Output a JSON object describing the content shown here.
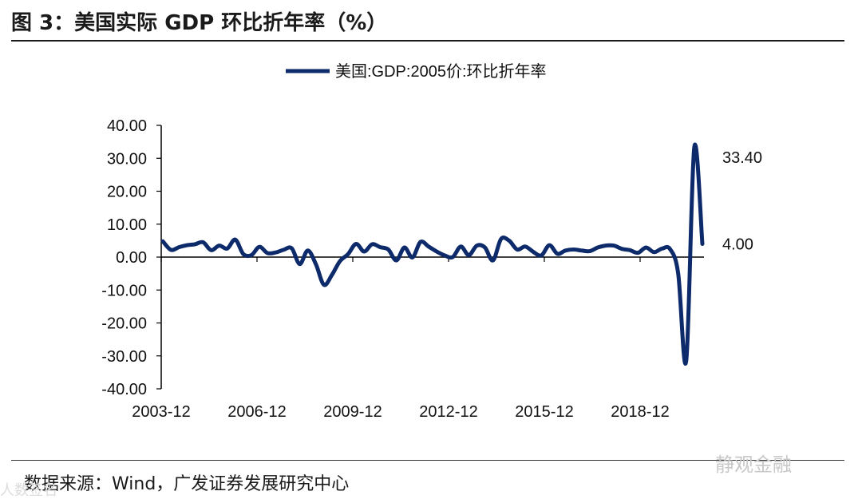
{
  "figure": {
    "title": "图 3：美国实际 GDP 环比折年率（%）",
    "source_label": "数据来源：",
    "source_text": "Wind，广发证券发展研究中心",
    "watermark": "静观金融",
    "watermark_small": "人数签名"
  },
  "colors": {
    "series": "#0d2a6b",
    "axis": "#000000",
    "text": "#111111"
  },
  "chart_data": {
    "type": "line",
    "title": "",
    "xlabel": "",
    "ylabel": "",
    "ylim": [
      -40,
      40
    ],
    "yticks": [
      "40.00",
      "30.00",
      "20.00",
      "10.00",
      "0.00",
      "-10.00",
      "-20.00",
      "-30.00",
      "-40.00"
    ],
    "xtick_labels": [
      "2003-12",
      "2006-12",
      "2009-12",
      "2012-12",
      "2015-12",
      "2018-12"
    ],
    "xtick_positions": [
      0,
      12,
      24,
      36,
      48,
      60
    ],
    "legend_placement": "top-center",
    "series": [
      {
        "name": "美国:GDP:2005价:环比折年率",
        "values": [
          4.8,
          2.2,
          3.0,
          3.6,
          3.9,
          4.5,
          2.1,
          3.5,
          2.6,
          5.3,
          0.9,
          0.6,
          3.1,
          1.2,
          1.4,
          2.2,
          2.7,
          -2.1,
          2.0,
          -2.1,
          -8.4,
          -5.4,
          -1.2,
          0.9,
          4.0,
          1.7,
          3.9,
          3.0,
          2.3,
          -1.0,
          2.9,
          -0.1,
          4.6,
          3.2,
          1.7,
          0.5,
          0.0,
          3.2,
          0.6,
          3.5,
          2.9,
          -1.0,
          5.5,
          5.0,
          2.3,
          3.2,
          1.6,
          0.5,
          3.6,
          1.0,
          2.0,
          2.3,
          2.0,
          1.8,
          2.9,
          3.5,
          3.5,
          2.5,
          2.1,
          1.3,
          2.9,
          1.5,
          2.6,
          2.4,
          -5.0,
          -31.4,
          33.4,
          4.0
        ],
        "end_labels": [
          "33.40",
          "4.00"
        ],
        "end_label_indices": [
          66,
          67
        ]
      }
    ]
  }
}
